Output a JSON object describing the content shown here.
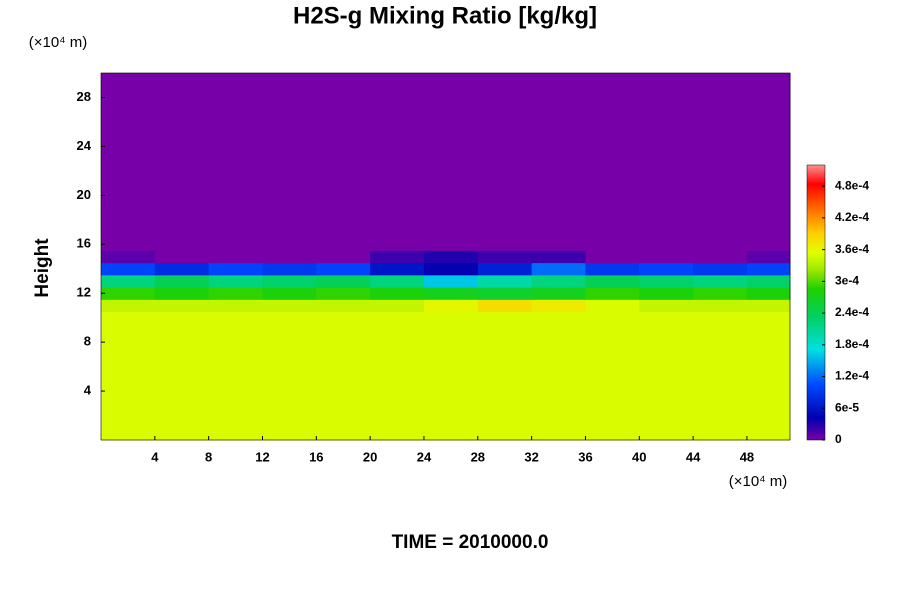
{
  "chart_data": {
    "type": "heatmap",
    "title": "H2S-g Mixing Ratio [kg/kg]",
    "y_label": "Height",
    "y_unit": "(×10⁴ m)",
    "x_unit": "(×10⁴ m)",
    "time_label": "TIME = 2010000.0",
    "xlim": [
      0,
      51.2
    ],
    "ylim": [
      0,
      30
    ],
    "xticks": [
      4,
      8,
      12,
      16,
      20,
      24,
      28,
      32,
      36,
      40,
      44,
      48
    ],
    "yticks": [
      4,
      8,
      12,
      16,
      20,
      24,
      28
    ],
    "xbins": [
      0,
      4,
      8,
      12,
      16,
      20,
      24,
      28,
      32,
      36,
      40,
      44,
      48,
      51.2
    ],
    "ybins": [
      0,
      10.5,
      11.5,
      12.5,
      13.5,
      14.5,
      15.5,
      30
    ],
    "z": [
      [
        0.00035,
        0.00035,
        0.00035,
        0.00035,
        0.00035,
        0.00035,
        0.00035,
        0.00035,
        0.00035,
        0.00035,
        0.00035,
        0.00035,
        0.00035
      ],
      [
        0.00034,
        0.00034,
        0.00034,
        0.00034,
        0.00034,
        0.00034,
        0.00036,
        0.00038,
        0.00037,
        0.00035,
        0.00034,
        0.00034,
        0.00034
      ],
      [
        0.00029,
        0.00028,
        0.00029,
        0.00028,
        0.00029,
        0.00028,
        0.00027,
        0.00026,
        0.00027,
        0.00029,
        0.00028,
        0.00029,
        0.00028
      ],
      [
        0.00022,
        0.00024,
        0.00022,
        0.00023,
        0.00024,
        0.00022,
        0.00016,
        0.0002,
        0.00022,
        0.00024,
        0.00023,
        0.00022,
        0.00023
      ],
      [
        0.0001,
        8e-05,
        0.0001,
        9e-05,
        0.0001,
        6e-05,
        4e-05,
        7e-05,
        0.00012,
        9e-05,
        0.0001,
        9e-05,
        0.0001
      ],
      [
        1e-05,
        0,
        0,
        0,
        0,
        2e-05,
        3e-05,
        2e-05,
        2e-05,
        0,
        0,
        0,
        1e-05
      ],
      [
        0,
        0,
        0,
        0,
        0,
        0,
        0,
        0,
        0,
        0,
        0,
        0,
        0
      ]
    ],
    "zlim": [
      0,
      0.00052
    ],
    "zticks": [
      0,
      {
        "value": 6e-05,
        "label": "6e-5"
      },
      {
        "value": 0.00012,
        "label": "1.2e-4"
      },
      {
        "value": 0.00018,
        "label": "1.8e-4"
      },
      {
        "value": 0.00024,
        "label": "2.4e-4"
      },
      {
        "value": 0.0003,
        "label": "3e-4"
      },
      {
        "value": 0.00036,
        "label": "3.6e-4"
      },
      {
        "value": 0.00042,
        "label": "4.2e-4"
      },
      {
        "value": 0.00048,
        "label": "4.8e-4"
      }
    ],
    "colorscale": [
      [
        0,
        "#7800a8"
      ],
      [
        0.08,
        "#0000b0"
      ],
      [
        0.2,
        "#0048ff"
      ],
      [
        0.33,
        "#00e0e0"
      ],
      [
        0.45,
        "#00d060"
      ],
      [
        0.55,
        "#20d000"
      ],
      [
        0.62,
        "#a0e800"
      ],
      [
        0.68,
        "#e0ff00"
      ],
      [
        0.75,
        "#ffd000"
      ],
      [
        0.85,
        "#ff6000"
      ],
      [
        0.93,
        "#ff0000"
      ],
      [
        1,
        "#ff9090"
      ]
    ]
  }
}
